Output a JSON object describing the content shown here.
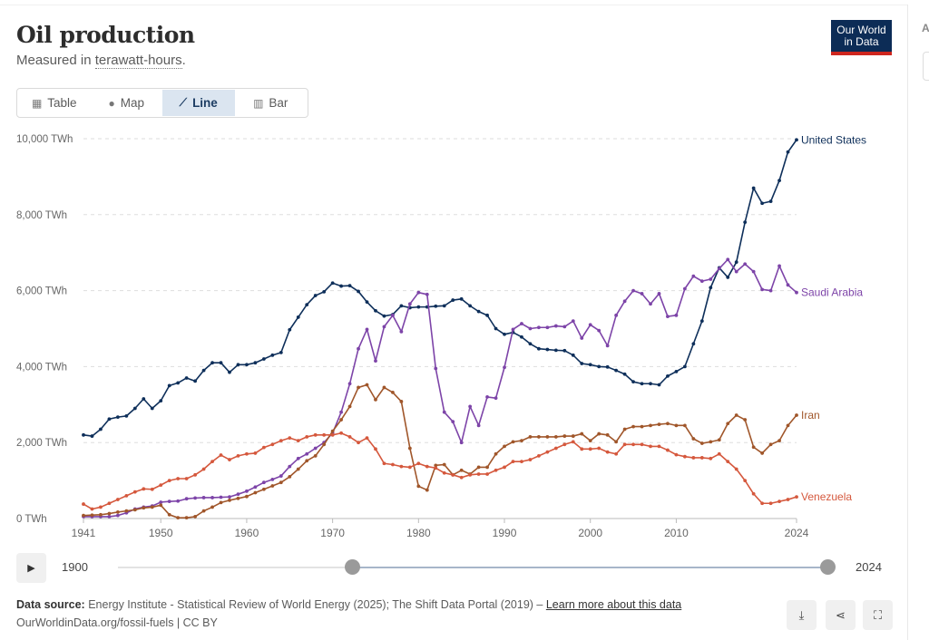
{
  "header": {
    "title": "Oil production",
    "subtitle_prefix": "Measured in ",
    "subtitle_unit": "terawatt-hours",
    "subtitle_suffix": ".",
    "logo": "Our World in Data"
  },
  "tabs": [
    {
      "label": "Table",
      "icon": "table-icon"
    },
    {
      "label": "Map",
      "icon": "globe-icon"
    },
    {
      "label": "Line",
      "icon": "line-chart-icon",
      "active": true
    },
    {
      "label": "Bar",
      "icon": "bar-chart-icon"
    }
  ],
  "side": {
    "letter": "A"
  },
  "timeline": {
    "start_label": "1900",
    "end_label": "2024",
    "range_start": 1941,
    "range_end": 2024
  },
  "footer": {
    "source_label": "Data source:",
    "source_text": " Energy Institute - Statistical Review of World Energy (2025); The Shift Data Portal (2019) – ",
    "learn_more": "Learn more about this data",
    "url": "OurWorldinData.org/fossil-fuels | CC BY"
  },
  "chart_data": {
    "type": "line",
    "title": "Oil production",
    "ylabel": "",
    "xlabel": "",
    "ylim": [
      0,
      10000
    ],
    "yticks": [
      0,
      2000,
      4000,
      6000,
      8000,
      10000
    ],
    "ytick_labels": [
      "0 TWh",
      "2,000 TWh",
      "4,000 TWh",
      "6,000 TWh",
      "8,000 TWh",
      "10,000 TWh"
    ],
    "xticks": [
      1941,
      1950,
      1960,
      1970,
      1980,
      1990,
      2000,
      2010,
      2024
    ],
    "xlim": [
      1941,
      2024
    ],
    "grid": "horizontal dashed",
    "legend": "line-end labels",
    "series": [
      {
        "name": "United States",
        "color": "#0e2f5a",
        "values": [
          2200,
          2170,
          2350,
          2620,
          2670,
          2700,
          2900,
          3150,
          2900,
          3100,
          3500,
          3570,
          3700,
          3620,
          3900,
          4100,
          4100,
          3850,
          4050,
          4050,
          4100,
          4200,
          4300,
          4370,
          4970,
          5300,
          5630,
          5870,
          5970,
          6200,
          6120,
          6130,
          5980,
          5700,
          5470,
          5330,
          5370,
          5600,
          5550,
          5570,
          5570,
          5590,
          5600,
          5750,
          5780,
          5600,
          5450,
          5350,
          5000,
          4850,
          4900,
          4780,
          4600,
          4470,
          4450,
          4430,
          4420,
          4300,
          4080,
          4050,
          4000,
          3990,
          3900,
          3800,
          3600,
          3550,
          3550,
          3520,
          3750,
          3870,
          4000,
          4600,
          5200,
          6080,
          6600,
          6350,
          6750,
          7800,
          8700,
          8300,
          8350,
          8900,
          9650,
          9970
        ]
      },
      {
        "name": "Saudi Arabia",
        "color": "#7d44a8",
        "values": [
          50,
          50,
          50,
          50,
          80,
          150,
          250,
          300,
          330,
          430,
          450,
          460,
          520,
          540,
          550,
          550,
          560,
          570,
          640,
          720,
          830,
          950,
          1030,
          1120,
          1370,
          1580,
          1700,
          1850,
          2000,
          2250,
          2800,
          3550,
          4470,
          4980,
          4150,
          5050,
          5350,
          4920,
          5650,
          5950,
          5900,
          3950,
          2800,
          2550,
          2000,
          2950,
          2450,
          3200,
          3170,
          3980,
          4980,
          5130,
          5000,
          5030,
          5030,
          5070,
          5050,
          5200,
          4750,
          5100,
          4950,
          4550,
          5350,
          5720,
          6000,
          5920,
          5650,
          5920,
          5320,
          5350,
          6050,
          6380,
          6250,
          6300,
          6580,
          6820,
          6500,
          6700,
          6500,
          6030,
          6000,
          6650,
          6150,
          5950
        ]
      },
      {
        "name": "Iran",
        "color": "#a0562a",
        "values": [
          80,
          90,
          100,
          130,
          170,
          200,
          230,
          280,
          300,
          350,
          100,
          20,
          20,
          50,
          200,
          300,
          420,
          480,
          530,
          580,
          680,
          770,
          860,
          950,
          1100,
          1300,
          1520,
          1650,
          1950,
          2300,
          2600,
          2950,
          3450,
          3520,
          3130,
          3450,
          3320,
          3080,
          1850,
          850,
          750,
          1400,
          1420,
          1150,
          1270,
          1170,
          1350,
          1350,
          1700,
          1900,
          2020,
          2050,
          2150,
          2150,
          2150,
          2150,
          2170,
          2170,
          2230,
          2050,
          2230,
          2200,
          2020,
          2350,
          2420,
          2420,
          2450,
          2480,
          2500,
          2450,
          2450,
          2100,
          1980,
          2020,
          2070,
          2500,
          2720,
          2600,
          1880,
          1720,
          1950,
          2050,
          2450,
          2720
        ]
      },
      {
        "name": "Venezuela",
        "color": "#d5583d",
        "values": [
          380,
          250,
          300,
          400,
          500,
          600,
          700,
          780,
          770,
          880,
          1000,
          1050,
          1050,
          1150,
          1300,
          1500,
          1670,
          1550,
          1650,
          1700,
          1720,
          1870,
          1950,
          2050,
          2120,
          2050,
          2150,
          2200,
          2200,
          2200,
          2250,
          2150,
          2000,
          2120,
          1830,
          1450,
          1420,
          1370,
          1350,
          1450,
          1370,
          1330,
          1200,
          1150,
          1080,
          1150,
          1170,
          1170,
          1270,
          1350,
          1500,
          1500,
          1550,
          1650,
          1750,
          1850,
          1950,
          2020,
          1830,
          1830,
          1850,
          1750,
          1700,
          1950,
          1950,
          1950,
          1900,
          1900,
          1800,
          1680,
          1630,
          1600,
          1600,
          1580,
          1700,
          1500,
          1300,
          1000,
          650,
          400,
          400,
          450,
          500,
          570
        ]
      }
    ]
  }
}
